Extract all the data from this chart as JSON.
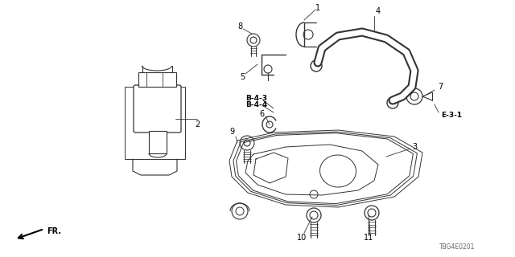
{
  "bg_color": "#ffffff",
  "diagram_color": "#333333",
  "label_color": "#000000",
  "bold_labels": [
    "B-4-3",
    "B-4-4",
    "E-3-1"
  ],
  "doc_number": "TBG4E0201",
  "fr_text": "FR."
}
